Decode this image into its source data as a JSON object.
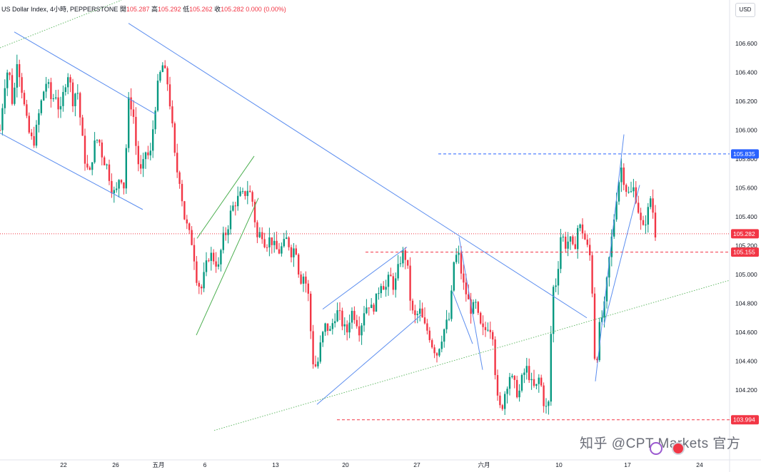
{
  "header": {
    "symbol": "US Dollar Index, 4小時, PEPPERSTONE",
    "open_label": "開",
    "open": "105.287",
    "high_label": "高",
    "high": "105.292",
    "low_label": "低",
    "low": "105.262",
    "close_label": "收",
    "close": "105.282",
    "change": "0.000 (0.00%)"
  },
  "currency_button": "USD",
  "watermark": "知乎 @CPT Markets 官方",
  "colors": {
    "up": "#089981",
    "down": "#f23645",
    "trendline_blue": "#5b8def",
    "trendline_green": "#4caf50",
    "dotted_green": "#66bb6a",
    "marker_blue": "#2962ff",
    "marker_red": "#f23645",
    "text": "#131722"
  },
  "chart_data": {
    "type": "candlestick",
    "ylim": [
      103.96,
      106.78
    ],
    "y_ticks": [
      104.0,
      104.2,
      104.4,
      104.6,
      104.8,
      105.0,
      105.2,
      105.4,
      105.6,
      105.8,
      106.0,
      106.2,
      106.4,
      106.6
    ],
    "x_ticks": [
      "22",
      "26",
      "五月",
      "6",
      "13",
      "20",
      "27",
      "六月",
      "10",
      "17",
      "24"
    ],
    "price_markers": [
      {
        "value": 105.835,
        "label": "105.835",
        "color": "blue",
        "style": "dashed"
      },
      {
        "value": 105.282,
        "label": "105.282",
        "color": "red",
        "style": "dotted",
        "current": true
      },
      {
        "value": 105.155,
        "label": "105.155",
        "color": "red",
        "style": "dashed"
      },
      {
        "value": 103.994,
        "label": "103.994",
        "color": "red",
        "style": "dashed"
      }
    ],
    "close_path": [
      [
        0,
        106.0
      ],
      [
        6,
        106.3
      ],
      [
        12,
        106.45
      ],
      [
        18,
        106.15
      ],
      [
        24,
        106.5
      ],
      [
        30,
        106.3
      ],
      [
        36,
        106.1
      ],
      [
        42,
        105.95
      ],
      [
        48,
        105.92
      ],
      [
        54,
        106.1
      ],
      [
        60,
        106.25
      ],
      [
        66,
        106.35
      ],
      [
        72,
        106.2
      ],
      [
        78,
        106.25
      ],
      [
        84,
        106.1
      ],
      [
        90,
        106.3
      ],
      [
        96,
        106.4
      ],
      [
        102,
        106.2
      ],
      [
        108,
        106.3
      ],
      [
        114,
        106.0
      ],
      [
        120,
        105.75
      ],
      [
        126,
        105.7
      ],
      [
        132,
        105.9
      ],
      [
        138,
        105.95
      ],
      [
        144,
        105.8
      ],
      [
        150,
        105.75
      ],
      [
        156,
        105.6
      ],
      [
        162,
        105.55
      ],
      [
        168,
        105.7
      ],
      [
        174,
        105.6
      ],
      [
        180,
        106.2
      ],
      [
        186,
        106.15
      ],
      [
        192,
        105.8
      ],
      [
        198,
        105.7
      ],
      [
        204,
        105.85
      ],
      [
        210,
        105.8
      ],
      [
        216,
        106.1
      ],
      [
        222,
        106.35
      ],
      [
        228,
        106.45
      ],
      [
        234,
        106.35
      ],
      [
        240,
        106.1
      ],
      [
        246,
        105.75
      ],
      [
        252,
        105.65
      ],
      [
        258,
        105.4
      ],
      [
        264,
        105.3
      ],
      [
        270,
        105.2
      ],
      [
        276,
        104.95
      ],
      [
        282,
        104.9
      ],
      [
        288,
        105.05
      ],
      [
        294,
        105.15
      ],
      [
        300,
        105.1
      ],
      [
        306,
        105.05
      ],
      [
        312,
        105.25
      ],
      [
        318,
        105.3
      ],
      [
        324,
        105.45
      ],
      [
        330,
        105.5
      ],
      [
        336,
        105.55
      ],
      [
        342,
        105.55
      ],
      [
        348,
        105.6
      ],
      [
        354,
        105.5
      ],
      [
        360,
        105.25
      ],
      [
        366,
        105.3
      ],
      [
        372,
        105.2
      ],
      [
        378,
        105.25
      ],
      [
        384,
        105.2
      ],
      [
        390,
        105.15
      ],
      [
        396,
        105.2
      ],
      [
        402,
        105.25
      ],
      [
        408,
        105.15
      ],
      [
        414,
        105.2
      ],
      [
        420,
        104.95
      ],
      [
        426,
        105.0
      ],
      [
        432,
        104.85
      ],
      [
        438,
        104.4
      ],
      [
        444,
        104.35
      ],
      [
        450,
        104.55
      ],
      [
        456,
        104.65
      ],
      [
        462,
        104.6
      ],
      [
        468,
        104.7
      ],
      [
        474,
        104.75
      ],
      [
        480,
        104.65
      ],
      [
        486,
        104.6
      ],
      [
        492,
        104.75
      ],
      [
        498,
        104.7
      ],
      [
        504,
        104.6
      ],
      [
        510,
        104.75
      ],
      [
        516,
        104.8
      ],
      [
        522,
        104.75
      ],
      [
        528,
        104.85
      ],
      [
        534,
        104.95
      ],
      [
        540,
        104.9
      ],
      [
        546,
        105.0
      ],
      [
        552,
        104.9
      ],
      [
        558,
        105.05
      ],
      [
        564,
        105.15
      ],
      [
        570,
        105.1
      ],
      [
        576,
        104.75
      ],
      [
        582,
        104.7
      ],
      [
        588,
        104.75
      ],
      [
        594,
        104.65
      ],
      [
        600,
        104.6
      ],
      [
        606,
        104.5
      ],
      [
        612,
        104.45
      ],
      [
        618,
        104.55
      ],
      [
        624,
        104.65
      ],
      [
        630,
        104.7
      ],
      [
        636,
        105.1
      ],
      [
        642,
        105.15
      ],
      [
        648,
        104.95
      ],
      [
        654,
        104.85
      ],
      [
        660,
        104.75
      ],
      [
        666,
        104.8
      ],
      [
        672,
        104.65
      ],
      [
        678,
        104.6
      ],
      [
        684,
        104.65
      ],
      [
        690,
        104.6
      ],
      [
        696,
        104.15
      ],
      [
        702,
        104.05
      ],
      [
        708,
        104.2
      ],
      [
        714,
        104.3
      ],
      [
        720,
        104.25
      ],
      [
        726,
        104.15
      ],
      [
        732,
        104.3
      ],
      [
        738,
        104.35
      ],
      [
        744,
        104.25
      ],
      [
        750,
        104.2
      ],
      [
        756,
        104.3
      ],
      [
        762,
        104.1
      ],
      [
        768,
        104.05
      ],
      [
        774,
        104.9
      ],
      [
        780,
        104.95
      ],
      [
        786,
        105.3
      ],
      [
        792,
        105.2
      ],
      [
        798,
        105.25
      ],
      [
        804,
        105.15
      ],
      [
        810,
        105.35
      ],
      [
        816,
        105.3
      ],
      [
        822,
        105.2
      ],
      [
        828,
        105.1
      ],
      [
        834,
        104.3
      ],
      [
        840,
        104.65
      ],
      [
        846,
        104.75
      ],
      [
        852,
        105.05
      ],
      [
        858,
        105.3
      ],
      [
        864,
        105.55
      ],
      [
        870,
        105.75
      ],
      [
        876,
        105.6
      ],
      [
        882,
        105.55
      ],
      [
        888,
        105.6
      ],
      [
        894,
        105.45
      ],
      [
        900,
        105.3
      ],
      [
        906,
        105.4
      ],
      [
        912,
        105.55
      ],
      [
        918,
        105.282
      ]
    ],
    "trendlines": [
      {
        "color": "blue",
        "points": [
          [
            20,
            106.68
          ],
          [
            218,
            106.11
          ]
        ]
      },
      {
        "color": "blue",
        "points": [
          [
            0,
            105.98
          ],
          [
            200,
            105.45
          ]
        ]
      },
      {
        "color": "blue",
        "points": [
          [
            180,
            106.74
          ],
          [
            822,
            104.7
          ]
        ]
      },
      {
        "color": "green",
        "points": [
          [
            275,
            104.58
          ],
          [
            362,
            105.53
          ]
        ]
      },
      {
        "color": "green",
        "points": [
          [
            276,
            105.25
          ],
          [
            356,
            105.82
          ]
        ]
      },
      {
        "color": "blue",
        "points": [
          [
            444,
            104.1
          ],
          [
            590,
            104.72
          ]
        ]
      },
      {
        "color": "blue",
        "points": [
          [
            452,
            104.76
          ],
          [
            570,
            105.19
          ]
        ]
      },
      {
        "color": "blue",
        "points": [
          [
            643,
            105.26
          ],
          [
            676,
            104.34
          ]
        ]
      },
      {
        "color": "blue",
        "points": [
          [
            634,
            104.88
          ],
          [
            662,
            104.52
          ]
        ]
      },
      {
        "color": "blue",
        "points": [
          [
            834,
            104.26
          ],
          [
            874,
            105.97
          ]
        ]
      },
      {
        "color": "blue",
        "points": [
          [
            846,
            104.65
          ],
          [
            896,
            105.62
          ]
        ]
      }
    ],
    "dotted_trendlines": [
      {
        "color": "green",
        "points": [
          [
            0,
            106.57
          ],
          [
            170,
            106.9
          ]
        ]
      },
      {
        "color": "green",
        "points": [
          [
            300,
            103.92
          ],
          [
            1022,
            104.96
          ]
        ]
      }
    ]
  }
}
